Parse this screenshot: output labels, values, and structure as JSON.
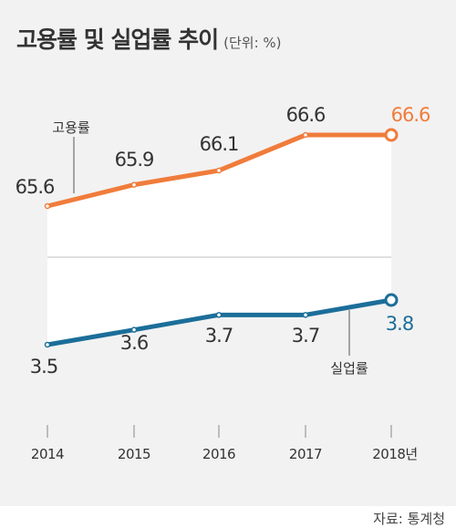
{
  "title": "고용률 및 실업률 추이",
  "unit": "(단위: %)",
  "source": "자료: 통계청",
  "colors": {
    "employment": "#f07c3b",
    "unemployment": "#1b6e99",
    "background": "#f2f2f2",
    "panel": "#ffffff"
  },
  "chart_data": {
    "type": "line",
    "categories": [
      "2014",
      "2015",
      "2016",
      "2017",
      "2018년"
    ],
    "series": [
      {
        "name": "고용률",
        "values": [
          65.6,
          65.9,
          66.1,
          66.6,
          66.6
        ]
      },
      {
        "name": "실업률",
        "values": [
          3.5,
          3.6,
          3.7,
          3.7,
          3.8
        ]
      }
    ],
    "data_labels": [
      [
        "65.6",
        "65.9",
        "66.1",
        "66.6",
        "66.6"
      ],
      [
        "3.5",
        "3.6",
        "3.7",
        "3.7",
        "3.8"
      ]
    ],
    "axis_break": true,
    "grid": false,
    "legend": "inline labels"
  }
}
